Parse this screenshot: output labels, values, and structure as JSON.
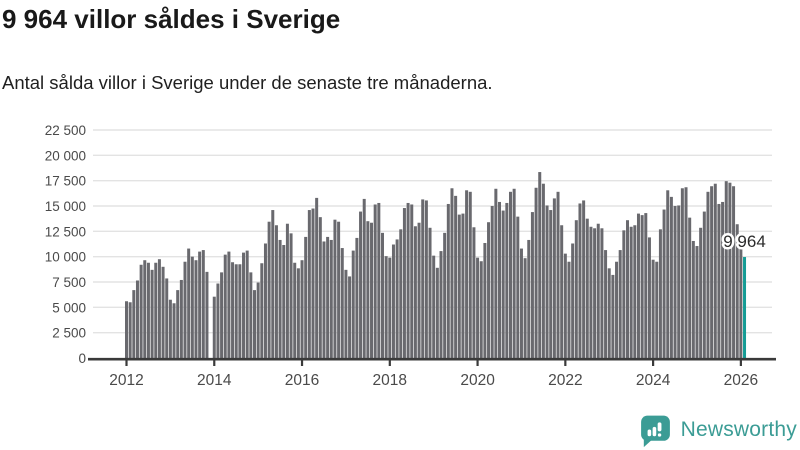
{
  "header": {
    "title": "9 964 villor såldes i Sverige",
    "subtitle": "Antal sålda villor i Sverige under de senaste tre månaderna."
  },
  "chart_data": {
    "type": "bar",
    "title": "9 964 villor såldes i Sverige",
    "subtitle": "Antal sålda villor i Sverige under de senaste tre månaderna.",
    "unit": "villor",
    "x_start": "2012-01",
    "frequency": "monthly",
    "ylim": [
      0,
      22500
    ],
    "grid": true,
    "y_ticks": [
      0,
      2500,
      5000,
      7500,
      10000,
      12500,
      15000,
      17500,
      20000,
      22500
    ],
    "y_tick_labels": [
      "0",
      "2 500",
      "5 000",
      "7 500",
      "10 000",
      "12 500",
      "15 000",
      "17 500",
      "20 000",
      "22 500"
    ],
    "x_tick_years": [
      "2012",
      "2014",
      "2016",
      "2018",
      "2020",
      "2022",
      "2024",
      "2026"
    ],
    "bar_color": "#69696e",
    "highlight_color": "#159c95",
    "highlight_index": 169,
    "annotation": {
      "text": "9 964",
      "value": 9964
    },
    "values": [
      5600,
      5500,
      6700,
      7650,
      9200,
      9650,
      9400,
      8700,
      9400,
      9750,
      9000,
      7850,
      5750,
      5400,
      6700,
      7700,
      9500,
      10800,
      10000,
      9650,
      10500,
      10650,
      8500,
      null,
      6050,
      7350,
      8450,
      10200,
      10500,
      9450,
      9250,
      9250,
      10400,
      10600,
      8450,
      6700,
      7450,
      9350,
      11300,
      13450,
      14600,
      13100,
      11650,
      11150,
      13250,
      12300,
      9400,
      8850,
      9650,
      11950,
      14600,
      14750,
      15800,
      13900,
      11500,
      11950,
      11650,
      13650,
      13450,
      10850,
      8700,
      8050,
      10600,
      11850,
      14450,
      15700,
      13500,
      13350,
      15150,
      15300,
      12350,
      10050,
      9900,
      11200,
      11700,
      12700,
      14800,
      15300,
      15150,
      13000,
      13350,
      15650,
      15550,
      12850,
      10100,
      8900,
      10550,
      12350,
      15200,
      16750,
      16000,
      14150,
      14250,
      16550,
      16400,
      12900,
      9900,
      9550,
      11350,
      13400,
      15000,
      16700,
      15400,
      14550,
      15300,
      16400,
      16700,
      13950,
      10800,
      9850,
      11650,
      14400,
      16800,
      18350,
      17200,
      15050,
      14600,
      15750,
      16400,
      13100,
      10300,
      9500,
      11300,
      13600,
      15250,
      15550,
      13750,
      12950,
      12800,
      13250,
      12800,
      10650,
      8850,
      8200,
      9500,
      10650,
      12600,
      13600,
      12950,
      13100,
      14250,
      14100,
      14300,
      11900,
      9700,
      9500,
      12700,
      14650,
      16550,
      15900,
      15000,
      15050,
      16750,
      16850,
      13850,
      11550,
      11050,
      12850,
      14450,
      16400,
      16950,
      17200,
      15200,
      15400,
      17450,
      17300,
      16950,
      13200,
      10800,
      9964
    ]
  },
  "footer": {
    "brand": "Newsworthy",
    "brand_color": "#3b9c95",
    "logo_icon": "bar-chart-speech-bubble"
  }
}
